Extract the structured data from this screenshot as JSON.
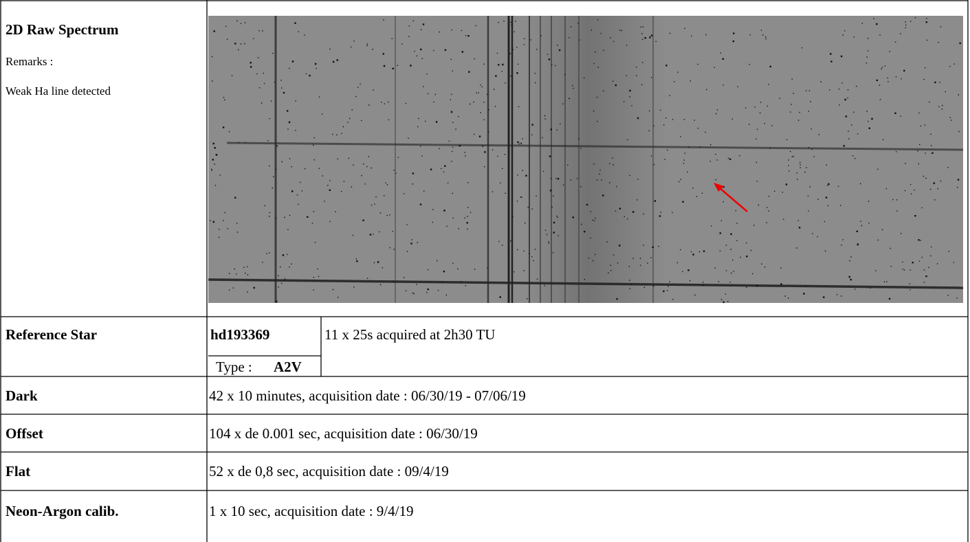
{
  "spectrum": {
    "title": "2D Raw Spectrum",
    "remarks_label": "Remarks :",
    "remarks": "Weak Ha line detected"
  },
  "rows": [
    {
      "label": "Reference Star",
      "star": "hd193369",
      "type_label": "Type :",
      "type": "A2V",
      "details": "11 x 25s acquired at 2h30 TU"
    },
    {
      "label": "Dark",
      "details": "42 x 10 minutes, acquisition date : 06/30/19 - 07/06/19"
    },
    {
      "label": "Offset",
      "details": "104 x de 0.001 sec, acquisition date : 06/30/19"
    },
    {
      "label": "Flat",
      "details": "52 x de 0,8 sec, acquisition date : 09/4/19"
    },
    {
      "label": "Neon-Argon calib.",
      "details": "1 x 10 sec, acquisition date : 9/4/19"
    }
  ]
}
